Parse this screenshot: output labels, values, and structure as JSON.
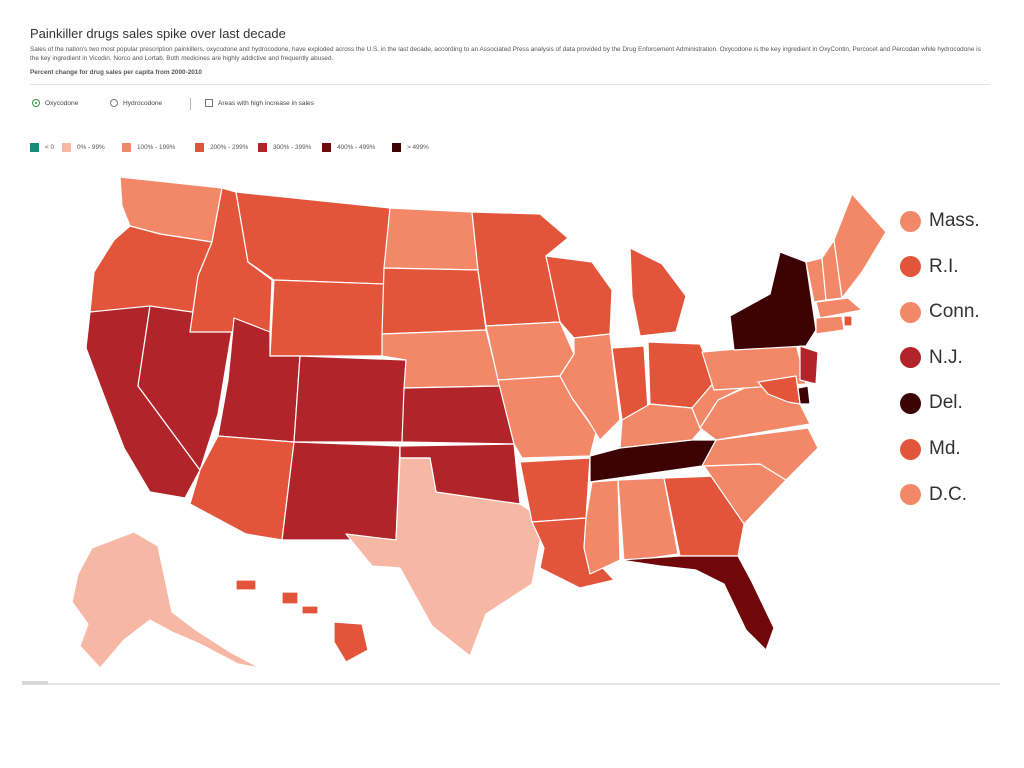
{
  "header": {
    "title": "Painkiller drugs sales spike over last decade",
    "description": "Sales of the nation's two most popular prescription painkillers, oxycodone and hydrocodone, have exploded across the U.S. in the last decade, according to an Associated Press analysis of data provided by the Drug Enforcement Administration. Oxycodone is the key ingredient in OxyContin, Percocet and Percodan while hydrocodone is the key ingredient in Vicodin, Norco and Lortab. Both medicines are highly addictive and frequently abused.",
    "subtitle": "Percent change for drug sales per capita from 2000-2010"
  },
  "controls": {
    "oxycodone_label": "Oxycodone",
    "hydrocodone_label": "Hydrocodone",
    "selected_drug": "Oxycodone",
    "high_increase_label": "Areas with high increase in sales"
  },
  "legend": [
    {
      "label": "< 0",
      "color": "#1a8a7a"
    },
    {
      "label": "0% - 99%",
      "color": "#f7b7a5"
    },
    {
      "label": "100% - 199%",
      "color": "#f28868"
    },
    {
      "label": "200% - 299%",
      "color": "#e2553a"
    },
    {
      "label": "300% - 399%",
      "color": "#b1242a"
    },
    {
      "label": "400% - 499%",
      "color": "#700809"
    },
    {
      "label": "> 499%",
      "color": "#3d0203"
    }
  ],
  "map_data": {
    "type": "choropleth",
    "region": "United States",
    "bin_by_state": {
      "WA": "100% - 199%",
      "OR": "200% - 299%",
      "CA": "300% - 399%",
      "NV": "300% - 399%",
      "ID": "200% - 299%",
      "MT": "200% - 299%",
      "WY": "200% - 299%",
      "UT": "300% - 399%",
      "CO": "300% - 399%",
      "AZ": "200% - 299%",
      "NM": "300% - 399%",
      "ND": "100% - 199%",
      "SD": "200% - 299%",
      "NE": "100% - 199%",
      "KS": "300% - 399%",
      "OK": "300% - 399%",
      "TX": "0% - 99%",
      "MN": "200% - 299%",
      "IA": "100% - 199%",
      "MO": "100% - 199%",
      "AR": "200% - 299%",
      "LA": "200% - 299%",
      "WI": "200% - 299%",
      "IL": "100% - 199%",
      "MI": "200% - 299%",
      "IN": "200% - 299%",
      "OH": "200% - 299%",
      "KY": "100% - 199%",
      "TN": "> 499%",
      "MS": "100% - 199%",
      "AL": "100% - 199%",
      "GA": "200% - 299%",
      "FL": "400% - 499%",
      "SC": "100% - 199%",
      "NC": "100% - 199%",
      "VA": "100% - 199%",
      "WV": "100% - 199%",
      "PA": "100% - 199%",
      "NY": "> 499%",
      "VT": "100% - 199%",
      "NH": "100% - 199%",
      "ME": "100% - 199%",
      "AK": "0% - 99%",
      "HI": "200% - 299%",
      "MA": "100% - 199%",
      "RI": "200% - 299%",
      "CT": "100% - 199%",
      "NJ": "300% - 399%",
      "DE": "> 499%",
      "MD": "200% - 299%",
      "DC": "100% - 199%"
    }
  },
  "northeast_labels": [
    {
      "label": "Mass.",
      "state": "MA"
    },
    {
      "label": "R.I.",
      "state": "RI"
    },
    {
      "label": "Conn.",
      "state": "CT"
    },
    {
      "label": "N.J.",
      "state": "NJ"
    },
    {
      "label": "Del.",
      "state": "DE"
    },
    {
      "label": "Md.",
      "state": "MD"
    },
    {
      "label": "D.C.",
      "state": "DC"
    }
  ]
}
